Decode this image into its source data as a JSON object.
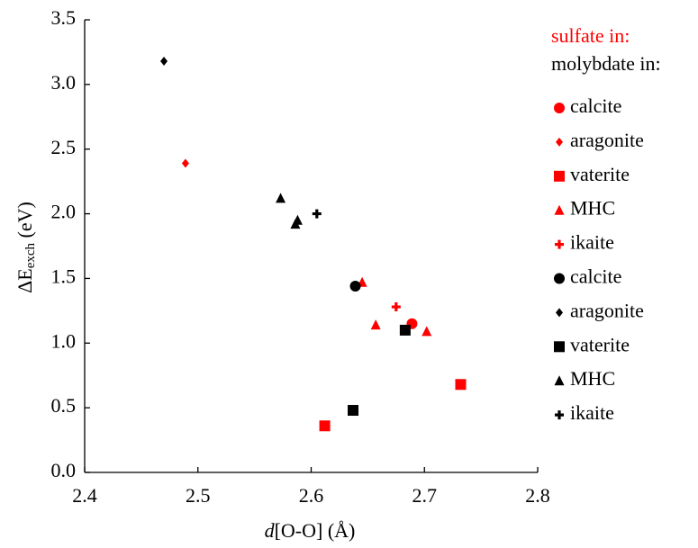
{
  "chart_data": {
    "type": "scatter",
    "xlabel": {
      "italic": "d",
      "rest": "[O-O] (Å)"
    },
    "ylabel": {
      "main": "ΔE",
      "sub": "exch",
      "unit": " (eV)"
    },
    "xlim": [
      2.4,
      2.8
    ],
    "xticks": [
      2.4,
      2.5,
      2.6,
      2.7,
      2.8
    ],
    "ylim": [
      0,
      3.5
    ],
    "yticks": [
      {
        "value": 0,
        "label": "0.0"
      },
      0.5,
      {
        "value": 1,
        "label": "1.0"
      },
      1.5,
      {
        "value": 2,
        "label": "2.0"
      },
      2.5,
      {
        "value": 3,
        "label": "3.0"
      },
      3.5
    ],
    "legend_headers": [
      {
        "text": "sulfate in:",
        "color": "#ff0000"
      },
      {
        "text": "molybdate in:",
        "color": "#000000"
      }
    ],
    "series": [
      {
        "name": "calcite",
        "color": "#ff0000",
        "marker": "circle",
        "x": [
          2.689
        ],
        "values": [
          1.15
        ]
      },
      {
        "name": "aragonite",
        "color": "#ff0000",
        "marker": "diamond",
        "x": [
          2.489
        ],
        "values": [
          2.39
        ]
      },
      {
        "name": "vaterite",
        "color": "#ff0000",
        "marker": "square",
        "x": [
          2.612,
          2.732
        ],
        "values": [
          0.36,
          0.68
        ]
      },
      {
        "name": "MHC",
        "color": "#ff0000",
        "marker": "triangle",
        "x": [
          2.645,
          2.657,
          2.702
        ],
        "values": [
          1.47,
          1.14,
          1.09
        ]
      },
      {
        "name": "ikaite",
        "color": "#ff0000",
        "marker": "plus",
        "x": [
          2.675
        ],
        "values": [
          1.28
        ]
      },
      {
        "name": "calcite",
        "color": "#000000",
        "marker": "circle",
        "x": [
          2.639
        ],
        "values": [
          1.44
        ]
      },
      {
        "name": "aragonite",
        "color": "#000000",
        "marker": "diamond",
        "x": [
          2.47
        ],
        "values": [
          3.18
        ]
      },
      {
        "name": "vaterite",
        "color": "#000000",
        "marker": "square",
        "x": [
          2.637,
          2.683
        ],
        "values": [
          0.48,
          1.1
        ]
      },
      {
        "name": "MHC",
        "color": "#000000",
        "marker": "triangle",
        "x": [
          2.573,
          2.586,
          2.588
        ],
        "values": [
          2.12,
          1.92,
          1.95
        ]
      },
      {
        "name": "ikaite",
        "color": "#000000",
        "marker": "plus",
        "x": [
          2.605
        ],
        "values": [
          2.0
        ]
      }
    ]
  }
}
